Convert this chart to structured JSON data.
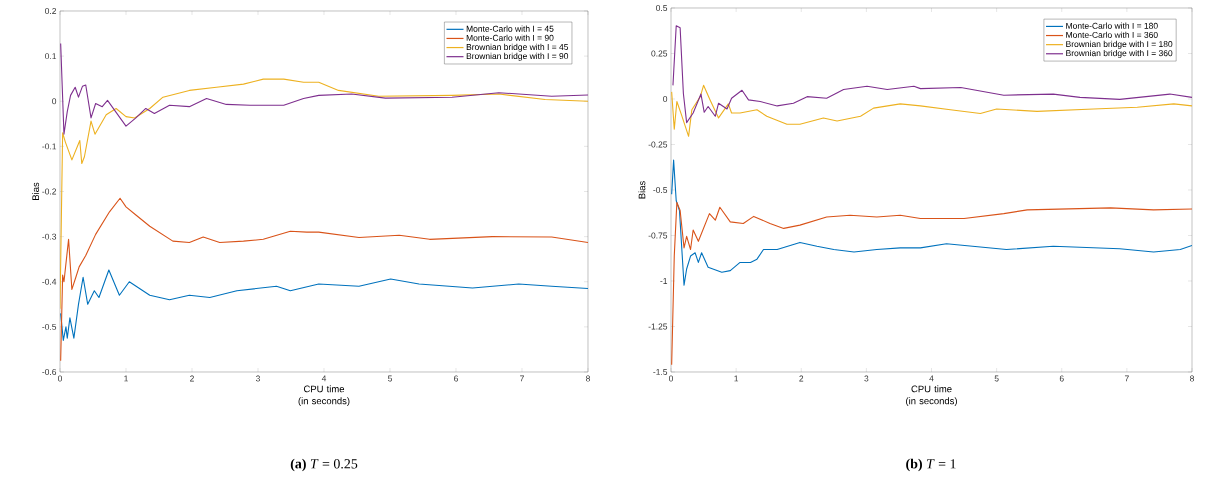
{
  "chart_data": [
    {
      "type": "line",
      "xlabel": "CPU time (in seconds)",
      "ylabel": "Bias",
      "xlim": [
        0,
        8
      ],
      "ylim": [
        -0.6,
        0.2
      ],
      "xticks": [
        0,
        1,
        2,
        3,
        4,
        5,
        6,
        7,
        8
      ],
      "yticks": [
        -0.6,
        -0.5,
        -0.4,
        -0.3,
        -0.2,
        -0.1,
        0,
        0.1,
        0.2
      ],
      "legend": "top right",
      "grid": false,
      "line_style": "solid",
      "marker": "none",
      "annotations": [
        "**(a)** *T* = 0.25"
      ],
      "series": [
        {
          "name": "Monte-Carlo with I = 45",
          "color": "#0072bd",
          "x": [
            0.01,
            0.05,
            0.09,
            0.11,
            0.15,
            0.21,
            0.28,
            0.35,
            0.42,
            0.52,
            0.59,
            0.74,
            0.9,
            1.05,
            1.36,
            1.66,
            1.96,
            2.27,
            2.68,
            3.28,
            3.49,
            3.92,
            4.53,
            5.01,
            5.44,
            6.25,
            6.95,
            7.45,
            8
          ],
          "values": [
            -0.47,
            -0.53,
            -0.5,
            -0.525,
            -0.48,
            -0.525,
            -0.45,
            -0.39,
            -0.45,
            -0.42,
            -0.435,
            -0.374,
            -0.43,
            -0.4,
            -0.43,
            -0.44,
            -0.43,
            -0.435,
            -0.42,
            -0.41,
            -0.42,
            -0.405,
            -0.41,
            -0.394,
            -0.405,
            -0.414,
            -0.405,
            -0.41,
            -0.415
          ]
        },
        {
          "name": "Monte-Carlo with I = 90",
          "color": "#d95319",
          "x": [
            0.01,
            0.04,
            0.06,
            0.13,
            0.18,
            0.24,
            0.29,
            0.39,
            0.54,
            0.75,
            0.91,
            1.0,
            1.15,
            1.36,
            1.71,
            1.96,
            2.17,
            2.42,
            2.78,
            3.08,
            3.49,
            3.74,
            3.92,
            4.53,
            5.14,
            5.6,
            6.55,
            7.45,
            8
          ],
          "values": [
            -0.575,
            -0.385,
            -0.4,
            -0.306,
            -0.417,
            -0.39,
            -0.367,
            -0.342,
            -0.295,
            -0.245,
            -0.215,
            -0.234,
            -0.252,
            -0.277,
            -0.31,
            -0.313,
            -0.301,
            -0.313,
            -0.31,
            -0.306,
            -0.288,
            -0.29,
            -0.29,
            -0.302,
            -0.297,
            -0.306,
            -0.3,
            -0.301,
            -0.313
          ]
        },
        {
          "name": "Brownian bridge with I = 45",
          "color": "#edb120",
          "x": [
            0.0,
            0.04,
            0.08,
            0.18,
            0.3,
            0.33,
            0.37,
            0.47,
            0.53,
            0.7,
            0.85,
            1.0,
            1.13,
            1.36,
            1.56,
            1.96,
            2.37,
            2.78,
            3.08,
            3.39,
            3.69,
            3.92,
            4.22,
            4.83,
            5.94,
            6.65,
            7.35,
            8
          ],
          "values": [
            -0.46,
            -0.07,
            -0.09,
            -0.13,
            -0.087,
            -0.138,
            -0.123,
            -0.044,
            -0.073,
            -0.03,
            -0.016,
            -0.034,
            -0.037,
            -0.016,
            0.009,
            0.024,
            0.031,
            0.038,
            0.049,
            0.049,
            0.042,
            0.042,
            0.024,
            0.011,
            0.013,
            0.016,
            0.004,
            0.0
          ]
        },
        {
          "name": "Brownian bridge with I = 90",
          "color": "#7e2f8e",
          "x": [
            0.01,
            0.06,
            0.11,
            0.16,
            0.23,
            0.28,
            0.34,
            0.39,
            0.47,
            0.54,
            0.64,
            0.72,
            1.0,
            1.15,
            1.3,
            1.43,
            1.66,
            1.96,
            2.22,
            2.52,
            2.88,
            3.39,
            3.69,
            3.92,
            4.42,
            4.93,
            5.94,
            6.65,
            7.45,
            8
          ],
          "values": [
            0.128,
            -0.073,
            -0.023,
            0.013,
            0.031,
            0.009,
            0.033,
            0.036,
            -0.037,
            -0.005,
            -0.012,
            0.002,
            -0.055,
            -0.037,
            -0.016,
            -0.027,
            -0.009,
            -0.012,
            0.006,
            -0.007,
            -0.009,
            -0.009,
            0.006,
            0.013,
            0.016,
            0.007,
            0.009,
            0.019,
            0.011,
            0.014
          ]
        }
      ]
    },
    {
      "type": "line",
      "xlabel": "CPU time (in seconds)",
      "ylabel": "Bias",
      "xlim": [
        0,
        8
      ],
      "ylim": [
        -1.5,
        0.5
      ],
      "xticks": [
        0,
        1,
        2,
        3,
        4,
        5,
        6,
        7,
        8
      ],
      "yticks": [
        -1.5,
        -1.25,
        -1,
        -0.75,
        -0.5,
        -0.25,
        0,
        0.25,
        0.5
      ],
      "legend": "top right",
      "grid": false,
      "line_style": "solid",
      "marker": "none",
      "annotations": [
        "**(b)** *T* = 1"
      ],
      "series": [
        {
          "name": "Monte-Carlo with I = 180",
          "color": "#0072bd",
          "x": [
            0.01,
            0.04,
            0.08,
            0.13,
            0.2,
            0.24,
            0.3,
            0.37,
            0.42,
            0.47,
            0.57,
            0.78,
            0.91,
            1.06,
            1.22,
            1.32,
            1.42,
            1.63,
            1.98,
            2.24,
            2.5,
            2.81,
            3.16,
            3.52,
            3.83,
            4.23,
            5.15,
            5.87,
            6.89,
            7.41,
            7.82,
            8.0
          ],
          "values": [
            -0.523,
            -0.336,
            -0.559,
            -0.613,
            -1.023,
            -0.934,
            -0.863,
            -0.845,
            -0.898,
            -0.845,
            -0.925,
            -0.952,
            -0.943,
            -0.898,
            -0.898,
            -0.88,
            -0.827,
            -0.827,
            -0.788,
            -0.809,
            -0.827,
            -0.841,
            -0.827,
            -0.818,
            -0.818,
            -0.795,
            -0.827,
            -0.809,
            -0.823,
            -0.841,
            -0.827,
            -0.805
          ]
        },
        {
          "name": "Monte-Carlo with I = 360",
          "color": "#d95319",
          "x": [
            0.01,
            0.05,
            0.09,
            0.14,
            0.2,
            0.24,
            0.3,
            0.34,
            0.42,
            0.59,
            0.68,
            0.75,
            0.91,
            1.11,
            1.27,
            1.52,
            1.73,
            1.98,
            2.39,
            2.75,
            3.16,
            3.52,
            3.83,
            4.5,
            5.11,
            5.47,
            6.75,
            7.41,
            8.0
          ],
          "values": [
            -1.46,
            -0.862,
            -0.568,
            -0.613,
            -0.818,
            -0.755,
            -0.827,
            -0.72,
            -0.782,
            -0.63,
            -0.666,
            -0.595,
            -0.675,
            -0.684,
            -0.645,
            -0.684,
            -0.711,
            -0.693,
            -0.648,
            -0.639,
            -0.648,
            -0.639,
            -0.657,
            -0.657,
            -0.63,
            -0.609,
            -0.598,
            -0.609,
            -0.604
          ]
        },
        {
          "name": "Brownian bridge with I = 180",
          "color": "#edb120",
          "x": [
            0.01,
            0.05,
            0.09,
            0.16,
            0.27,
            0.32,
            0.45,
            0.5,
            0.6,
            0.73,
            0.88,
            0.93,
            1.06,
            1.32,
            1.47,
            1.78,
            1.98,
            2.34,
            2.55,
            2.91,
            3.11,
            3.52,
            3.83,
            4.29,
            4.75,
            5.0,
            5.62,
            6.49,
            7.16,
            7.72,
            8.0
          ],
          "values": [
            0.039,
            -0.166,
            -0.014,
            -0.086,
            -0.205,
            -0.059,
            0.013,
            0.075,
            -0.005,
            -0.104,
            -0.027,
            -0.077,
            -0.077,
            -0.059,
            -0.095,
            -0.139,
            -0.139,
            -0.104,
            -0.121,
            -0.095,
            -0.05,
            -0.027,
            -0.038,
            -0.059,
            -0.08,
            -0.055,
            -0.068,
            -0.055,
            -0.045,
            -0.027,
            -0.038
          ]
        },
        {
          "name": "Brownian bridge with I = 360",
          "color": "#7e2f8e",
          "x": [
            0.03,
            0.08,
            0.14,
            0.19,
            0.24,
            0.34,
            0.46,
            0.51,
            0.57,
            0.68,
            0.73,
            0.86,
            0.93,
            1.09,
            1.19,
            1.37,
            1.63,
            1.88,
            2.09,
            2.39,
            2.65,
            3.01,
            3.32,
            3.73,
            3.83,
            4.45,
            5.11,
            5.87,
            6.28,
            6.89,
            7.66,
            8.0
          ],
          "values": [
            0.075,
            0.402,
            0.391,
            0.03,
            -0.13,
            -0.077,
            0.027,
            -0.073,
            -0.041,
            -0.095,
            -0.023,
            -0.055,
            0.004,
            0.048,
            -0.005,
            -0.014,
            -0.038,
            -0.023,
            0.013,
            0.004,
            0.052,
            0.07,
            0.052,
            0.07,
            0.057,
            0.063,
            0.021,
            0.027,
            0.009,
            -0.002,
            0.027,
            0.009
          ]
        }
      ]
    }
  ]
}
